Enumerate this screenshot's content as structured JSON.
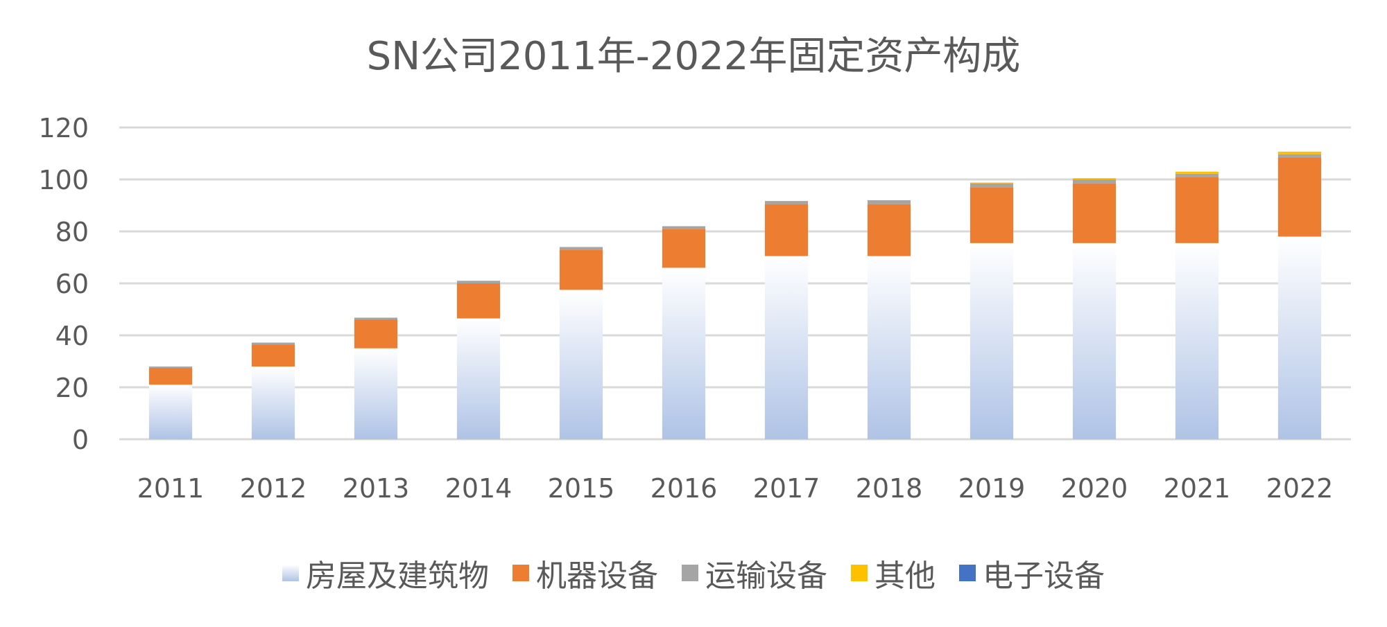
{
  "chart_data": {
    "type": "bar",
    "stacked": true,
    "title": "SN公司2011年-2022年固定资产构成",
    "xlabel": "",
    "ylabel": "",
    "ylim": [
      0,
      120
    ],
    "yticks": [
      0,
      20,
      40,
      60,
      80,
      100,
      120
    ],
    "grid": true,
    "legend_position": "bottom",
    "categories": [
      "2011",
      "2012",
      "2013",
      "2014",
      "2015",
      "2016",
      "2017",
      "2018",
      "2019",
      "2020",
      "2021",
      "2022"
    ],
    "series": [
      {
        "name": "房屋及建筑物",
        "color": "#B4C7E7",
        "fill": "gradient",
        "values": [
          21,
          28,
          35,
          46.5,
          57.5,
          66,
          70.5,
          70.5,
          75.5,
          75.5,
          75.5,
          78
        ]
      },
      {
        "name": "机器设备",
        "color": "#ED7D31",
        "values": [
          6.5,
          8.5,
          11,
          13.5,
          15.5,
          15,
          20,
          20,
          21.5,
          23,
          25.5,
          30.5
        ]
      },
      {
        "name": "运输设备",
        "color": "#A5A5A5",
        "values": [
          0.5,
          0.7,
          0.8,
          1,
          1,
          1,
          1.2,
          1.5,
          1.5,
          1.5,
          1.2,
          1.2
        ]
      },
      {
        "name": "其他",
        "color": "#FFC000",
        "values": [
          0,
          0,
          0,
          0,
          0,
          0,
          0,
          0,
          0.3,
          0.5,
          0.8,
          1
        ]
      },
      {
        "name": "电子设备",
        "color": "#4472C4",
        "values": [
          0,
          0,
          0,
          0,
          0,
          0,
          0,
          0,
          0,
          0,
          0,
          0
        ]
      }
    ]
  }
}
